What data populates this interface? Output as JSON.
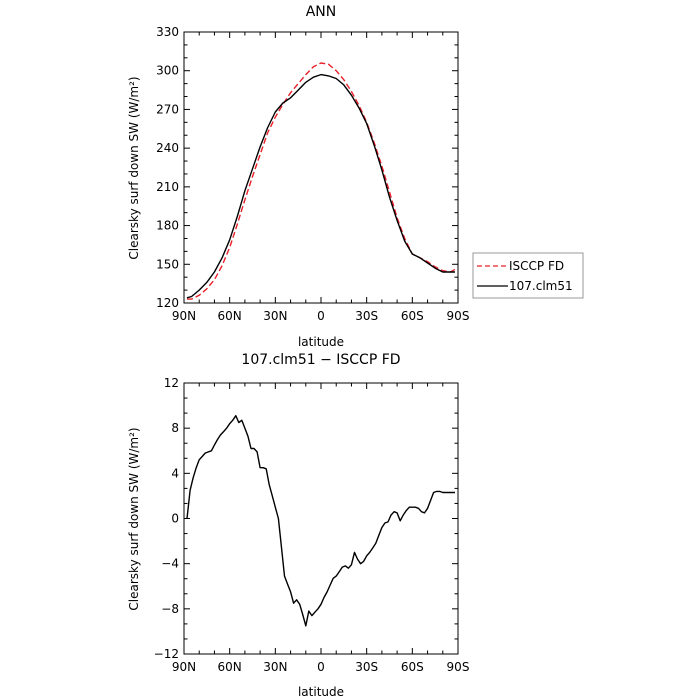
{
  "chart_data": [
    {
      "type": "line",
      "title": "ANN",
      "xlabel": "latitude",
      "ylabel": "Clearsky surf down SW (W/m²)",
      "x_ticklabels": [
        "90N",
        "60N",
        "30N",
        "0",
        "30S",
        "60S",
        "90S"
      ],
      "x_tickvalues": [
        90,
        60,
        30,
        0,
        -30,
        -60,
        -90
      ],
      "xlim": [
        90,
        -90
      ],
      "ylim": [
        120,
        330
      ],
      "y_ticks": [
        120,
        150,
        180,
        210,
        240,
        270,
        300,
        330
      ],
      "grid": false,
      "legend_position": "right",
      "series": [
        {
          "name": "ISCCP FD",
          "color": "#e8202a",
          "dash": "dashed",
          "x": [
            88,
            85,
            80,
            75,
            70,
            65,
            60,
            55,
            50,
            45,
            40,
            35,
            30,
            25,
            20,
            15,
            10,
            5,
            0,
            -5,
            -10,
            -15,
            -20,
            -25,
            -30,
            -35,
            -40,
            -45,
            -50,
            -55,
            -60,
            -65,
            -70,
            -75,
            -80,
            -85,
            -88
          ],
          "y": [
            123,
            123,
            126,
            131,
            138,
            149,
            163,
            181,
            200,
            218,
            235,
            252,
            264,
            274,
            283,
            290,
            297,
            303,
            306,
            305,
            300,
            293,
            284,
            273,
            260,
            244,
            226,
            206,
            186,
            170,
            158,
            155,
            152,
            148,
            145,
            144,
            146
          ]
        },
        {
          "name": "107.clm51",
          "color": "#000000",
          "dash": "solid",
          "x": [
            88,
            85,
            80,
            75,
            70,
            65,
            60,
            55,
            50,
            45,
            40,
            35,
            30,
            25,
            20,
            15,
            10,
            5,
            0,
            -5,
            -10,
            -15,
            -20,
            -25,
            -30,
            -35,
            -40,
            -45,
            -50,
            -55,
            -60,
            -65,
            -70,
            -75,
            -80,
            -85,
            -88
          ],
          "y": [
            124,
            125,
            130,
            136,
            144,
            155,
            169,
            187,
            207,
            224,
            241,
            256,
            268,
            275,
            279,
            285,
            291,
            295,
            297,
            296,
            294,
            289,
            281,
            271,
            259,
            242,
            223,
            202,
            184,
            168,
            158,
            155,
            151,
            147,
            144,
            144,
            144
          ]
        }
      ]
    },
    {
      "type": "line",
      "title": "107.clm51 − ISCCP FD",
      "xlabel": "latitude",
      "ylabel": "Clearsky surf down SW (W/m²)",
      "x_ticklabels": [
        "90N",
        "60N",
        "30N",
        "0",
        "30S",
        "60S",
        "90S"
      ],
      "x_tickvalues": [
        90,
        60,
        30,
        0,
        -30,
        -60,
        -90
      ],
      "xlim": [
        90,
        -90
      ],
      "ylim": [
        -12,
        12
      ],
      "y_ticks": [
        -12,
        -8,
        -4,
        0,
        4,
        8,
        12
      ],
      "grid": false,
      "series": [
        {
          "color": "#000000",
          "x": [
            88,
            86,
            84,
            82,
            80,
            78,
            76,
            74,
            72,
            70,
            68,
            66,
            64,
            62,
            60,
            58,
            56,
            54,
            52,
            50,
            48,
            46,
            44,
            42,
            40,
            38,
            36,
            34,
            32,
            30,
            28,
            26,
            24,
            22,
            20,
            18,
            16,
            14,
            12,
            10,
            8,
            6,
            4,
            2,
            0,
            -2,
            -4,
            -6,
            -8,
            -10,
            -12,
            -14,
            -16,
            -18,
            -20,
            -22,
            -24,
            -26,
            -28,
            -30,
            -32,
            -34,
            -36,
            -38,
            -40,
            -42,
            -44,
            -46,
            -48,
            -50,
            -52,
            -54,
            -56,
            -58,
            -60,
            -62,
            -64,
            -66,
            -68,
            -70,
            -72,
            -74,
            -76,
            -78,
            -80,
            -82,
            -84,
            -86,
            -88
          ],
          "y": [
            0.0,
            2.5,
            3.6,
            4.5,
            5.2,
            5.5,
            5.8,
            5.9,
            6.0,
            6.5,
            7.0,
            7.4,
            7.7,
            8.0,
            8.4,
            8.7,
            9.1,
            8.5,
            8.7,
            8.0,
            7.3,
            6.2,
            6.2,
            5.9,
            4.5,
            4.5,
            4.4,
            3.0,
            2.0,
            1.0,
            0.0,
            -2.5,
            -5.1,
            -5.8,
            -6.5,
            -7.5,
            -7.2,
            -7.6,
            -8.5,
            -9.5,
            -8.2,
            -8.6,
            -8.3,
            -8.0,
            -7.6,
            -7.0,
            -6.5,
            -5.9,
            -5.3,
            -5.1,
            -4.7,
            -4.3,
            -4.2,
            -4.4,
            -4.1,
            -3.0,
            -3.6,
            -4.0,
            -3.8,
            -3.3,
            -3.0,
            -2.6,
            -2.2,
            -1.5,
            -0.8,
            -0.4,
            -0.3,
            0.3,
            0.6,
            0.5,
            -0.2,
            0.3,
            0.7,
            1.0,
            1.0,
            1.0,
            0.9,
            0.6,
            0.5,
            0.9,
            1.6,
            2.3,
            2.4,
            2.4,
            2.3,
            2.3,
            2.3,
            2.3,
            2.3
          ]
        }
      ]
    }
  ]
}
